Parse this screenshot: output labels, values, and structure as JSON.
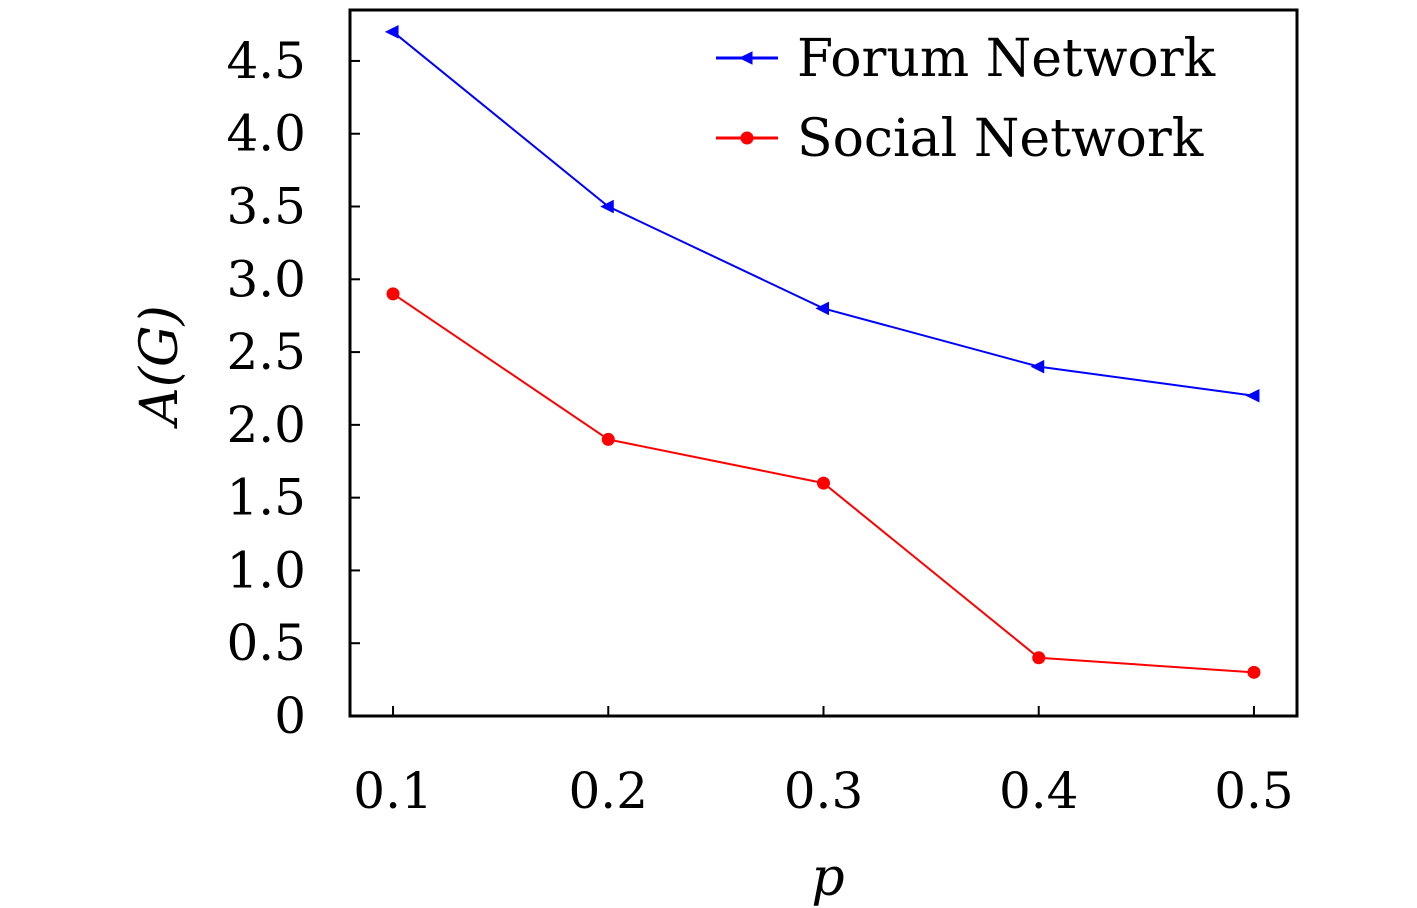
{
  "chart_data": {
    "type": "line",
    "x": [
      0.1,
      0.2,
      0.3,
      0.4,
      0.5
    ],
    "x_tick_labels": [
      "0.1",
      "0.2",
      "0.3",
      "0.4",
      "0.5"
    ],
    "y_tick_values": [
      0,
      0.5,
      1.0,
      1.5,
      2.0,
      2.5,
      3.0,
      3.5,
      4.0,
      4.5
    ],
    "y_tick_labels": [
      "0",
      "0.5",
      "1.0",
      "1.5",
      "2.0",
      "2.5",
      "3.0",
      "3.5",
      "4.0",
      "4.5"
    ],
    "xlabel": "p",
    "ylabel": "A(G)",
    "xlim": [
      0.08,
      0.52
    ],
    "ylim": [
      0,
      4.85
    ],
    "grid": false,
    "legend_position": "top-right",
    "series": [
      {
        "name": "Forum Network",
        "values": [
          4.7,
          3.5,
          2.8,
          2.4,
          2.2
        ],
        "color": "#0000ff",
        "marker": "left-triangle"
      },
      {
        "name": "Social Network",
        "values": [
          2.9,
          1.9,
          1.6,
          0.4,
          0.3
        ],
        "color": "#ff0000",
        "marker": "circle"
      }
    ]
  }
}
